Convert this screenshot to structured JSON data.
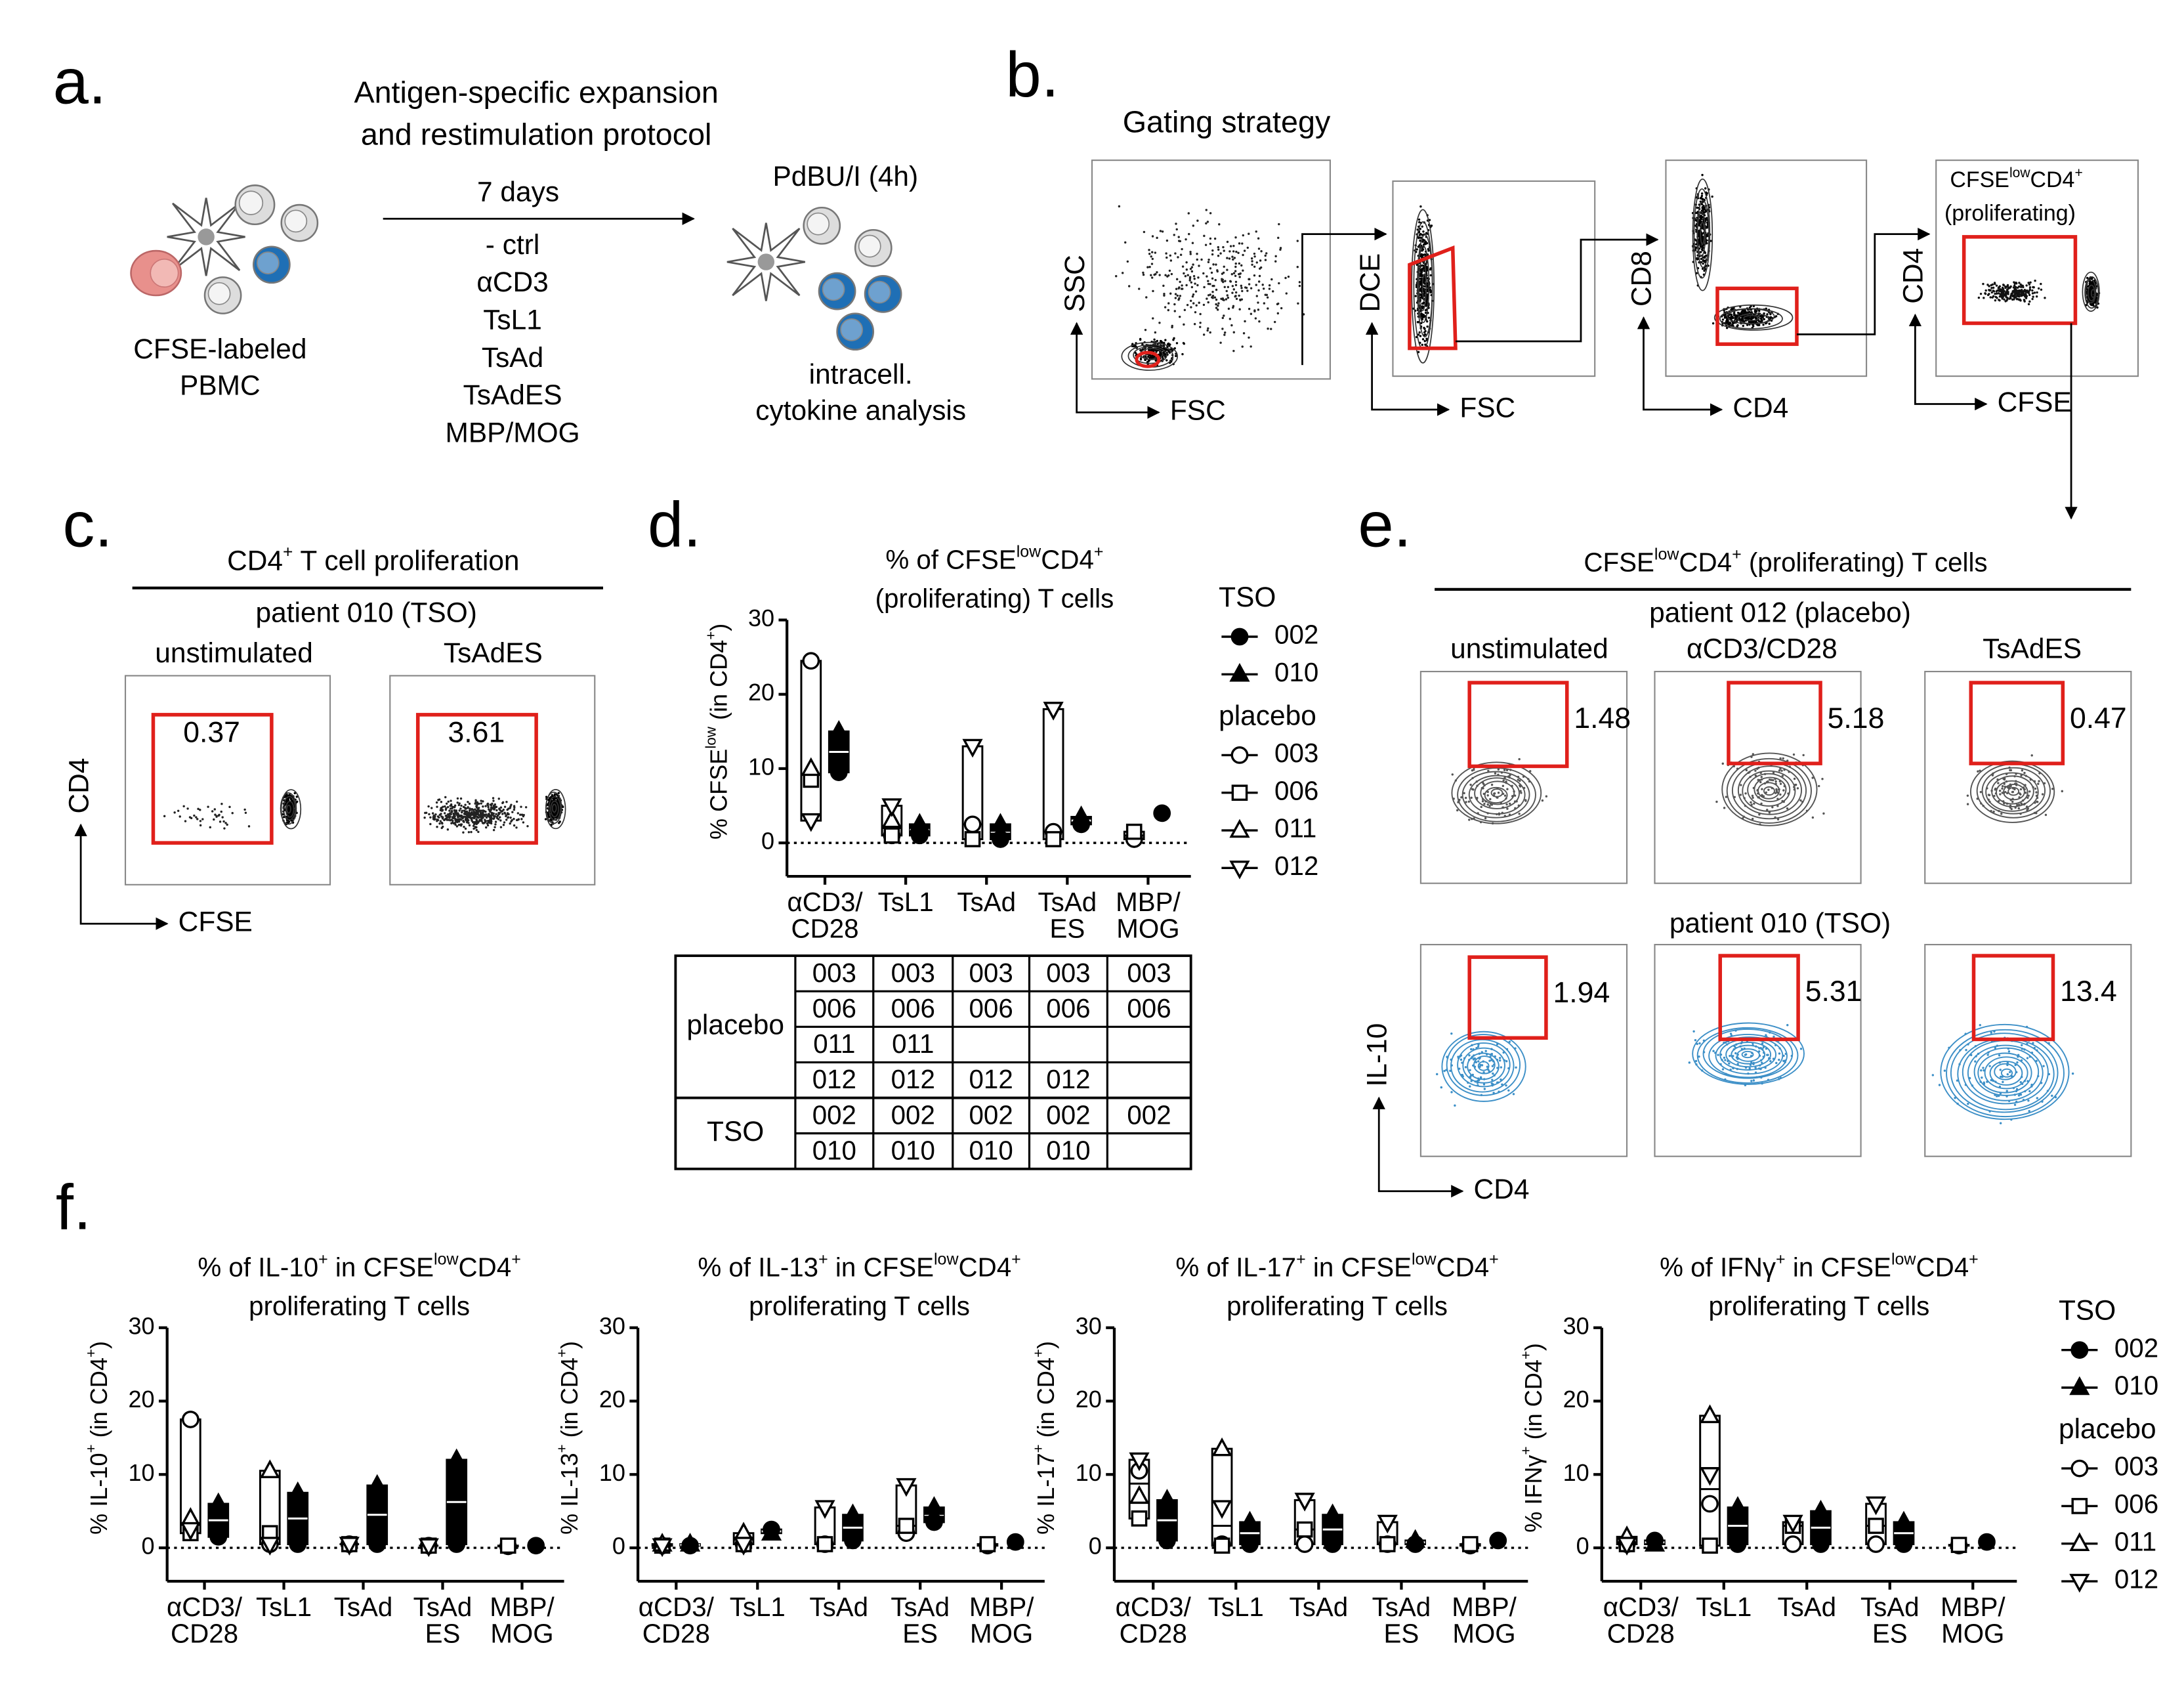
{
  "panel_a": {
    "label": "a.",
    "title": [
      "Antigen-specific expansion",
      "and restimulation protocol"
    ],
    "source": [
      "CFSE-labeled",
      "PBMC"
    ],
    "duration": "7 days",
    "conditions": [
      "- ctrl",
      "αCD3",
      "TsL1",
      "TsAd",
      "TsAdES",
      "MBP/MOG"
    ],
    "restimulation": "PdBU/I (4h)",
    "readout": [
      "intracell.",
      "cytokine analysis"
    ]
  },
  "panel_b": {
    "label": "b.",
    "title": "Gating strategy",
    "plots": [
      {
        "x": "FSC",
        "y": "SSC"
      },
      {
        "x": "FSC",
        "y": "DCE"
      },
      {
        "x": "CD4",
        "y": "CD8"
      },
      {
        "x": "CFSE",
        "y": "CD4",
        "gate": [
          [
            "CFSE",
            "low",
            "CD4",
            "+"
          ],
          "(proliferating)"
        ]
      }
    ]
  },
  "panel_c": {
    "label": "c.",
    "title": [
      "CD4",
      "+",
      " T cell proliferation"
    ],
    "patient": "patient 010 (TSO)",
    "plots": [
      {
        "condition": "unstimulated",
        "gate_value": 0.37
      },
      {
        "condition": "TsAdES",
        "gate_value": 3.61
      }
    ],
    "x_axis": "CFSE",
    "y_axis": "CD4"
  },
  "panel_d": {
    "label": "d.",
    "chart": {
      "type": "range-bar",
      "title": [
        "% of CFSE",
        "low",
        "CD4",
        "+"
      ],
      "title_line2": "(proliferating) T cells",
      "ylabel": [
        "% CFSE",
        "low",
        " (in CD4",
        "+",
        ")"
      ],
      "categories": [
        [
          "αCD3/",
          "CD28"
        ],
        [
          "TsL1"
        ],
        [
          "TsAd"
        ],
        [
          "TsAd",
          "ES"
        ],
        [
          "MBP/",
          "MOG"
        ]
      ],
      "ylim": [
        0,
        30
      ],
      "yticks": [
        0,
        10,
        20,
        30
      ],
      "series": [
        {
          "name": "002",
          "group": "TSO",
          "marker": "circle",
          "filled": true,
          "values": [
            9.5,
            1,
            0.5,
            2.5,
            4
          ]
        },
        {
          "name": "010",
          "group": "TSO",
          "marker": "triangle-up",
          "filled": true,
          "values": [
            15,
            2.5,
            2.5,
            3.5,
            null
          ]
        },
        {
          "name": "003",
          "group": "placebo",
          "marker": "circle",
          "filled": false,
          "values": [
            24.5,
            1,
            2.5,
            1.5,
            0.5
          ]
        },
        {
          "name": "006",
          "group": "placebo",
          "marker": "square",
          "filled": false,
          "values": [
            8.5,
            1,
            0.5,
            0.5,
            1.5
          ]
        },
        {
          "name": "011",
          "group": "placebo",
          "marker": "triangle-up",
          "filled": false,
          "values": [
            10,
            3,
            null,
            null,
            null
          ]
        },
        {
          "name": "012",
          "group": "placebo",
          "marker": "triangle-down",
          "filled": false,
          "values": [
            3,
            5,
            13,
            18,
            null
          ]
        }
      ]
    },
    "table": {
      "groups": [
        {
          "name": "placebo",
          "rows": [
            [
              "003",
              "003",
              "003",
              "003",
              "003"
            ],
            [
              "006",
              "006",
              "006",
              "006",
              "006"
            ],
            [
              "011",
              "011",
              null,
              null,
              null
            ],
            [
              "012",
              "012",
              "012",
              "012",
              null
            ]
          ]
        },
        {
          "name": "TSO",
          "rows": [
            [
              "002",
              "002",
              "002",
              "002",
              "002"
            ],
            [
              "010",
              "010",
              "010",
              "010",
              null
            ]
          ]
        }
      ]
    }
  },
  "panel_e": {
    "label": "e.",
    "title": [
      "CFSE",
      "low",
      "CD4",
      "+",
      " (proliferating) T cells"
    ],
    "conditions": [
      "unstimulated",
      "αCD3/CD28",
      "TsAdES"
    ],
    "rows": [
      {
        "patient": "patient 012 (placebo)",
        "gate_values": [
          1.48,
          5.18,
          0.47
        ]
      },
      {
        "patient": "patient 010 (TSO)",
        "gate_values": [
          1.94,
          5.31,
          13.4
        ]
      }
    ],
    "x_axis": "CD4",
    "y_axis": "IL-10"
  },
  "panel_f": {
    "label": "f.",
    "charts": [
      {
        "type": "range-bar",
        "title": [
          "% of IL-10",
          "+",
          " in CFSE",
          "low",
          "CD4",
          "+"
        ],
        "title_line2": "proliferating T cells",
        "ylabel": [
          "% IL-10",
          "+",
          " (in CD4",
          "+",
          ")"
        ],
        "categories": [
          [
            "αCD3/",
            "CD28"
          ],
          [
            "TsL1"
          ],
          [
            "TsAd"
          ],
          [
            "TsAd",
            "ES"
          ],
          [
            "MBP/",
            "MOG"
          ]
        ],
        "ylim": [
          0,
          30
        ],
        "yticks": [
          0,
          10,
          20,
          30
        ],
        "series": [
          {
            "name": "002",
            "group": "TSO",
            "marker": "circle",
            "filled": true,
            "values": [
              1.5,
              0.5,
              0.5,
              0.5,
              0.3
            ]
          },
          {
            "name": "010",
            "group": "TSO",
            "marker": "triangle-up",
            "filled": true,
            "values": [
              6,
              7.5,
              8.5,
              12,
              null
            ]
          },
          {
            "name": "003",
            "group": "placebo",
            "marker": "circle",
            "filled": false,
            "values": [
              17.5,
              0.5,
              0.5,
              0.3,
              0.2
            ]
          },
          {
            "name": "006",
            "group": "placebo",
            "marker": "square",
            "filled": false,
            "values": [
              2,
              2,
              0.5,
              0.3,
              0.3
            ]
          },
          {
            "name": "011",
            "group": "placebo",
            "marker": "triangle-up",
            "filled": false,
            "values": [
              4,
              10.5,
              null,
              null,
              null
            ]
          },
          {
            "name": "012",
            "group": "placebo",
            "marker": "triangle-down",
            "filled": false,
            "values": [
              2.5,
              0.5,
              0.5,
              0.3,
              null
            ]
          }
        ]
      },
      {
        "type": "range-bar",
        "title": [
          "% of IL-13",
          "+",
          " in CFSE",
          "low",
          "CD4",
          "+"
        ],
        "title_line2": "proliferating T cells",
        "ylabel": [
          "% IL-13",
          "+",
          " (in CD4",
          "+",
          ")"
        ],
        "categories": [
          [
            "αCD3/",
            "CD28"
          ],
          [
            "TsL1"
          ],
          [
            "TsAd"
          ],
          [
            "TsAd",
            "ES"
          ],
          [
            "MBP/",
            "MOG"
          ]
        ],
        "ylim": [
          0,
          30
        ],
        "yticks": [
          0,
          10,
          20,
          30
        ],
        "series": [
          {
            "name": "002",
            "group": "TSO",
            "marker": "circle",
            "filled": true,
            "values": [
              0.3,
              2.5,
              1,
              3.5,
              0.8
            ]
          },
          {
            "name": "010",
            "group": "TSO",
            "marker": "triangle-up",
            "filled": true,
            "values": [
              0.5,
              2,
              4.5,
              5.5,
              null
            ]
          },
          {
            "name": "003",
            "group": "placebo",
            "marker": "circle",
            "filled": false,
            "values": [
              0.3,
              0.5,
              0.5,
              2,
              0.3
            ]
          },
          {
            "name": "006",
            "group": "placebo",
            "marker": "square",
            "filled": false,
            "values": [
              0.3,
              0.5,
              0.5,
              3,
              0.5
            ]
          },
          {
            "name": "011",
            "group": "placebo",
            "marker": "triangle-up",
            "filled": false,
            "values": [
              0.5,
              2,
              null,
              null,
              null
            ]
          },
          {
            "name": "012",
            "group": "placebo",
            "marker": "triangle-down",
            "filled": false,
            "values": [
              0.3,
              0.5,
              5.5,
              8.5,
              null
            ]
          }
        ]
      },
      {
        "type": "range-bar",
        "title": [
          "% of IL-17",
          "+",
          " in CFSE",
          "low",
          "CD4",
          "+"
        ],
        "title_line2": "proliferating T cells",
        "ylabel": [
          "% IL-17",
          "+",
          " (in CD4",
          "+",
          ")"
        ],
        "categories": [
          [
            "αCD3/",
            "CD28"
          ],
          [
            "TsL1"
          ],
          [
            "TsAd"
          ],
          [
            "TsAd",
            "ES"
          ],
          [
            "MBP/",
            "MOG"
          ]
        ],
        "ylim": [
          0,
          30
        ],
        "yticks": [
          0,
          10,
          20,
          30
        ],
        "series": [
          {
            "name": "002",
            "group": "TSO",
            "marker": "circle",
            "filled": true,
            "values": [
              1,
              0.5,
              0.5,
              0.5,
              1
            ]
          },
          {
            "name": "010",
            "group": "TSO",
            "marker": "triangle-up",
            "filled": true,
            "values": [
              6.5,
              3.5,
              4.5,
              1,
              null
            ]
          },
          {
            "name": "003",
            "group": "placebo",
            "marker": "circle",
            "filled": false,
            "values": [
              10.5,
              0.5,
              0.5,
              0.5,
              0.3
            ]
          },
          {
            "name": "006",
            "group": "placebo",
            "marker": "square",
            "filled": false,
            "values": [
              4,
              0.3,
              2.5,
              0.5,
              0.5
            ]
          },
          {
            "name": "011",
            "group": "placebo",
            "marker": "triangle-up",
            "filled": false,
            "values": [
              7,
              13.5,
              null,
              null,
              null
            ]
          },
          {
            "name": "012",
            "group": "placebo",
            "marker": "triangle-down",
            "filled": false,
            "values": [
              12,
              5.5,
              6.5,
              3.5,
              null
            ]
          }
        ]
      },
      {
        "type": "range-bar",
        "title": [
          "% of IFNγ",
          "+",
          " in CFSE",
          "low",
          "CD4",
          "+"
        ],
        "title_line2": "proliferating T cells",
        "ylabel": [
          "% IFNγ",
          "+",
          " (in CD4",
          "+",
          ")"
        ],
        "categories": [
          [
            "αCD3/",
            "CD28"
          ],
          [
            "TsL1"
          ],
          [
            "TsAd"
          ],
          [
            "TsAd",
            "ES"
          ],
          [
            "MBP/",
            "MOG"
          ]
        ],
        "ylim": [
          0,
          30
        ],
        "yticks": [
          0,
          10,
          20,
          30
        ],
        "series": [
          {
            "name": "002",
            "group": "TSO",
            "marker": "circle",
            "filled": true,
            "values": [
              1,
              0.5,
              0.5,
              0.5,
              0.8
            ]
          },
          {
            "name": "010",
            "group": "TSO",
            "marker": "triangle-up",
            "filled": true,
            "values": [
              0.5,
              5.5,
              5,
              3.5,
              null
            ]
          },
          {
            "name": "003",
            "group": "placebo",
            "marker": "circle",
            "filled": false,
            "values": [
              0.5,
              6,
              0.5,
              0.5,
              0.3
            ]
          },
          {
            "name": "006",
            "group": "placebo",
            "marker": "square",
            "filled": false,
            "values": [
              0.5,
              0.3,
              3,
              3,
              0.4
            ]
          },
          {
            "name": "011",
            "group": "placebo",
            "marker": "triangle-up",
            "filled": false,
            "values": [
              1.5,
              18,
              null,
              null,
              null
            ]
          },
          {
            "name": "012",
            "group": "placebo",
            "marker": "triangle-down",
            "filled": false,
            "values": [
              0.5,
              10,
              3.5,
              6,
              null
            ]
          }
        ]
      }
    ]
  }
}
